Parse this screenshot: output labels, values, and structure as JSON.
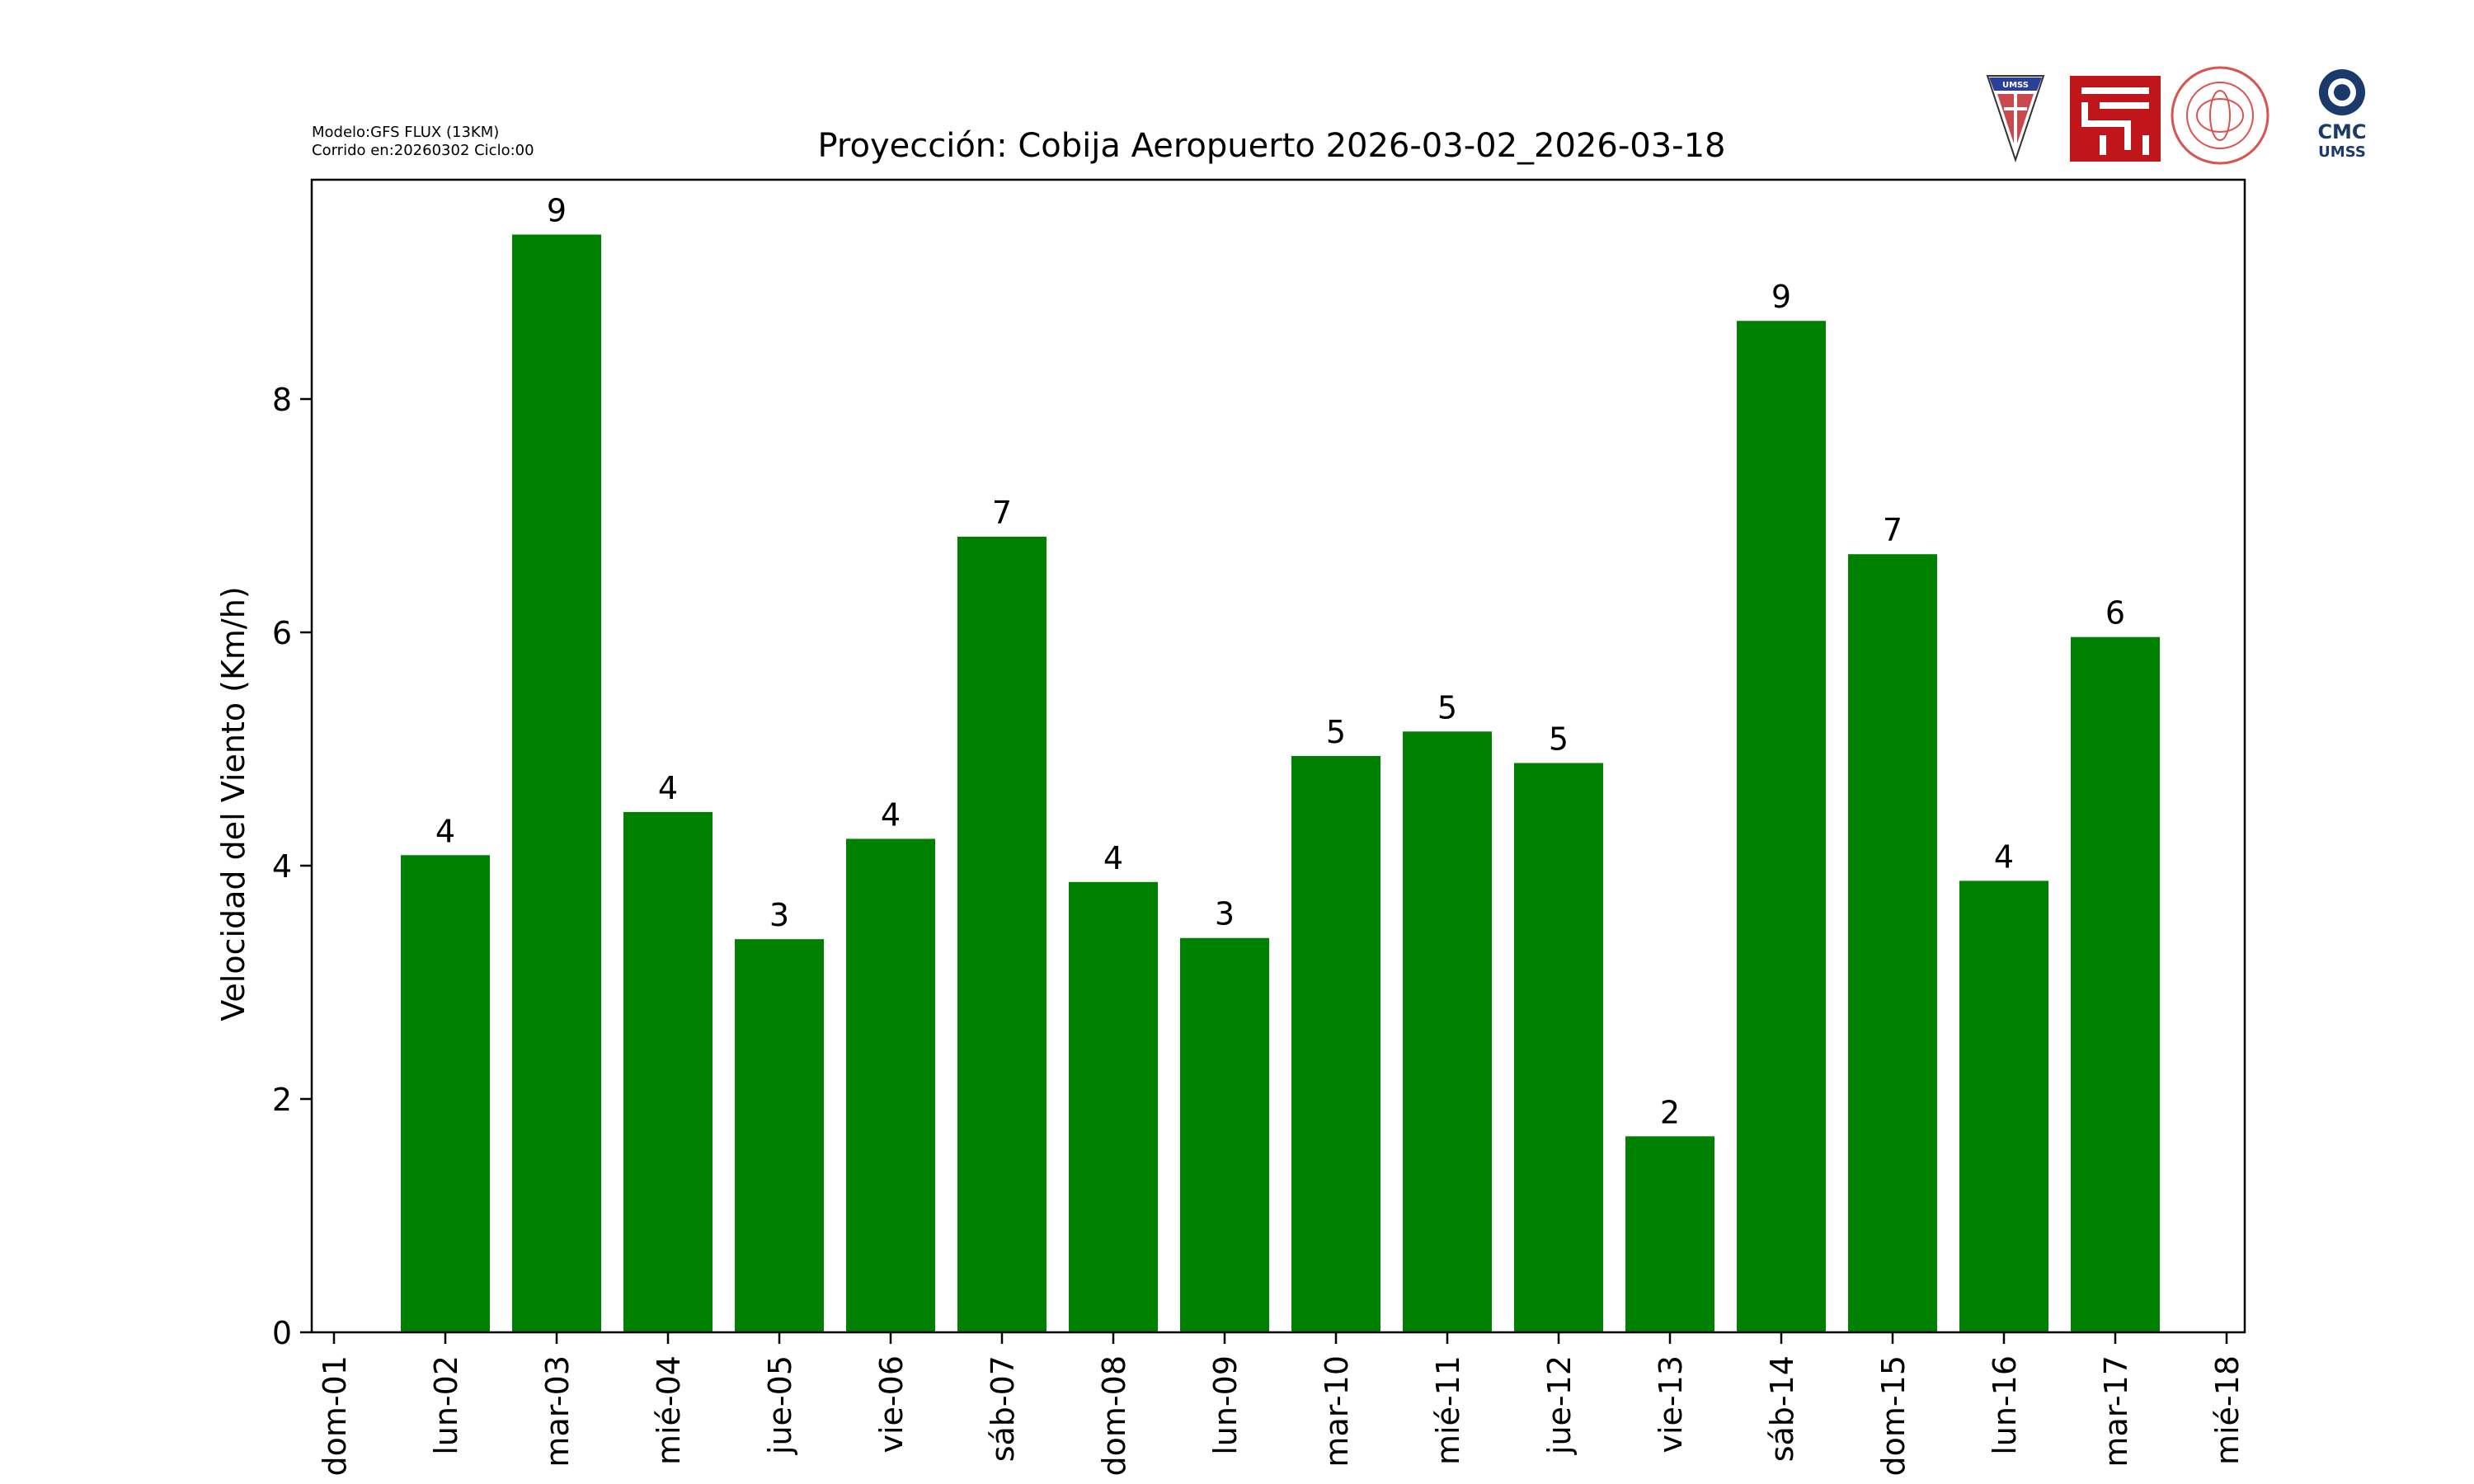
{
  "meta": {
    "model": "Modelo:GFS FLUX (13KM)",
    "run": "Corrido en:20260302 Ciclo:00"
  },
  "logos": {
    "umss_badge_text": "UMSS",
    "cmc_text": "CMC",
    "cmc_sub": "UMSS"
  },
  "colors": {
    "bar": "#008000",
    "axis": "#000000",
    "background": "#ffffff"
  },
  "chart_data": {
    "type": "bar",
    "title": "Proyección: Cobija Aeropuerto  2026-03-02_2026-03-18",
    "xlabel": "",
    "ylabel": "Velocidad del Viento (Km/h)",
    "tick_labels": [
      "dom-01",
      "lun-02",
      "mar-03",
      "mié-04",
      "jue-05",
      "vie-06",
      "sáb-07",
      "dom-08",
      "lun-09",
      "mar-10",
      "mié-11",
      "jue-12",
      "vie-13",
      "sáb-14",
      "dom-15",
      "lun-16",
      "mar-17",
      "mié-18"
    ],
    "categories": [
      "lun-02",
      "mar-03",
      "mié-04",
      "jue-05",
      "vie-06",
      "sáb-07",
      "dom-08",
      "lun-09",
      "mar-10",
      "mié-11",
      "jue-12",
      "vie-13",
      "sáb-14",
      "dom-15",
      "lun-16",
      "mar-17"
    ],
    "values": [
      4.09,
      9.41,
      4.46,
      3.37,
      4.23,
      6.82,
      3.86,
      3.38,
      4.94,
      5.15,
      4.88,
      1.68,
      8.67,
      6.67,
      3.87,
      5.96
    ],
    "data_labels": [
      "4",
      "9",
      "4",
      "3",
      "4",
      "7",
      "4",
      "3",
      "5",
      "5",
      "5",
      "2",
      "9",
      "7",
      "4",
      "6"
    ],
    "yticks": [
      0,
      2,
      4,
      6,
      8
    ],
    "ylim": [
      0,
      9.88
    ],
    "grid": false,
    "legend": "none"
  }
}
